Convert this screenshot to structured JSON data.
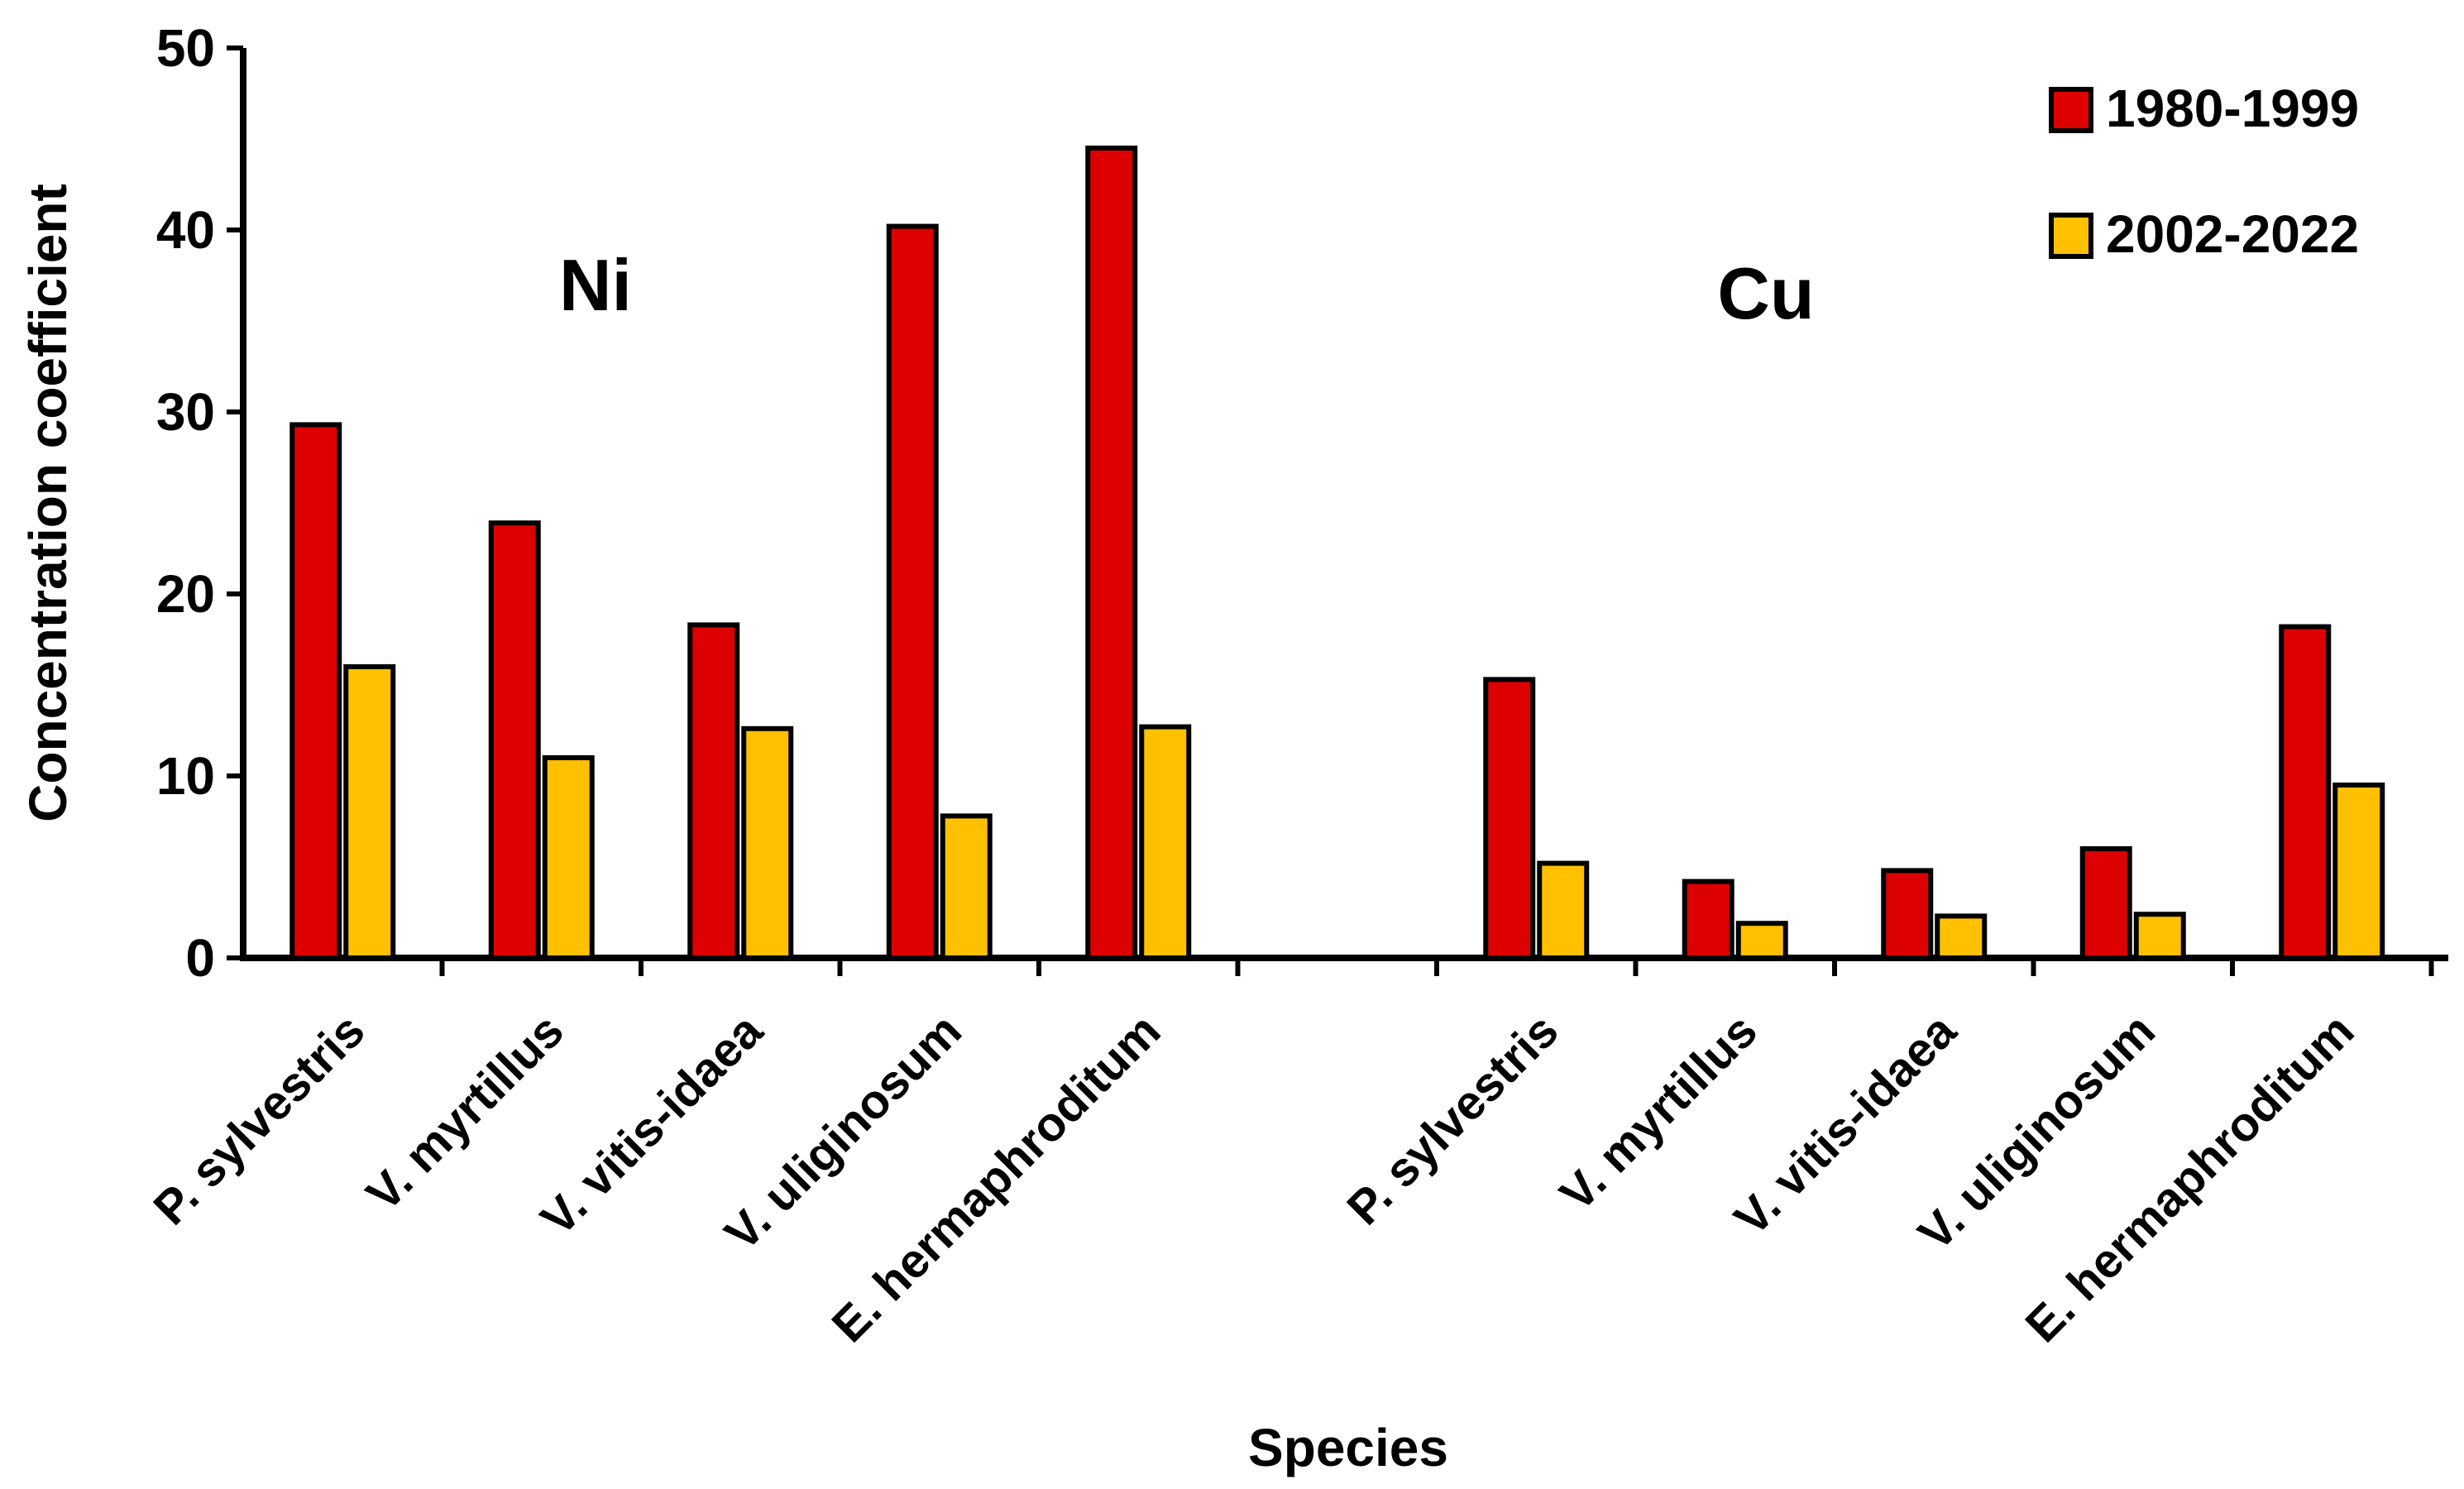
{
  "chart_data": {
    "type": "bar",
    "title": "",
    "xlabel": "Species",
    "ylabel": "Concentration coefficient",
    "ylim": [
      0,
      50
    ],
    "yticks": [
      0,
      10,
      20,
      30,
      40,
      50
    ],
    "grid": false,
    "legend_position": "top-right",
    "groups": [
      {
        "label": "Ni",
        "categories": [
          "P. sylvestris",
          "V. myrtillus",
          "V. vitis-idaea",
          "V. uliginosum",
          "E. hermaphroditum"
        ]
      },
      {
        "label": "Cu",
        "categories": [
          "P. sylvestris",
          "V. myrtillus",
          "V. vitis-idaea",
          "V. uliginosum",
          "E. hermaphroditum"
        ]
      }
    ],
    "series": [
      {
        "name": "1980-1999",
        "color": "#DD0000",
        "values": [
          29.3,
          23.9,
          18.3,
          40.2,
          44.5,
          15.3,
          4.2,
          4.8,
          6.0,
          18.2
        ]
      },
      {
        "name": "2002-2022",
        "color": "#FFC000",
        "values": [
          16.0,
          11.0,
          12.6,
          7.8,
          12.7,
          5.2,
          1.9,
          2.3,
          2.4,
          9.5
        ]
      }
    ]
  }
}
